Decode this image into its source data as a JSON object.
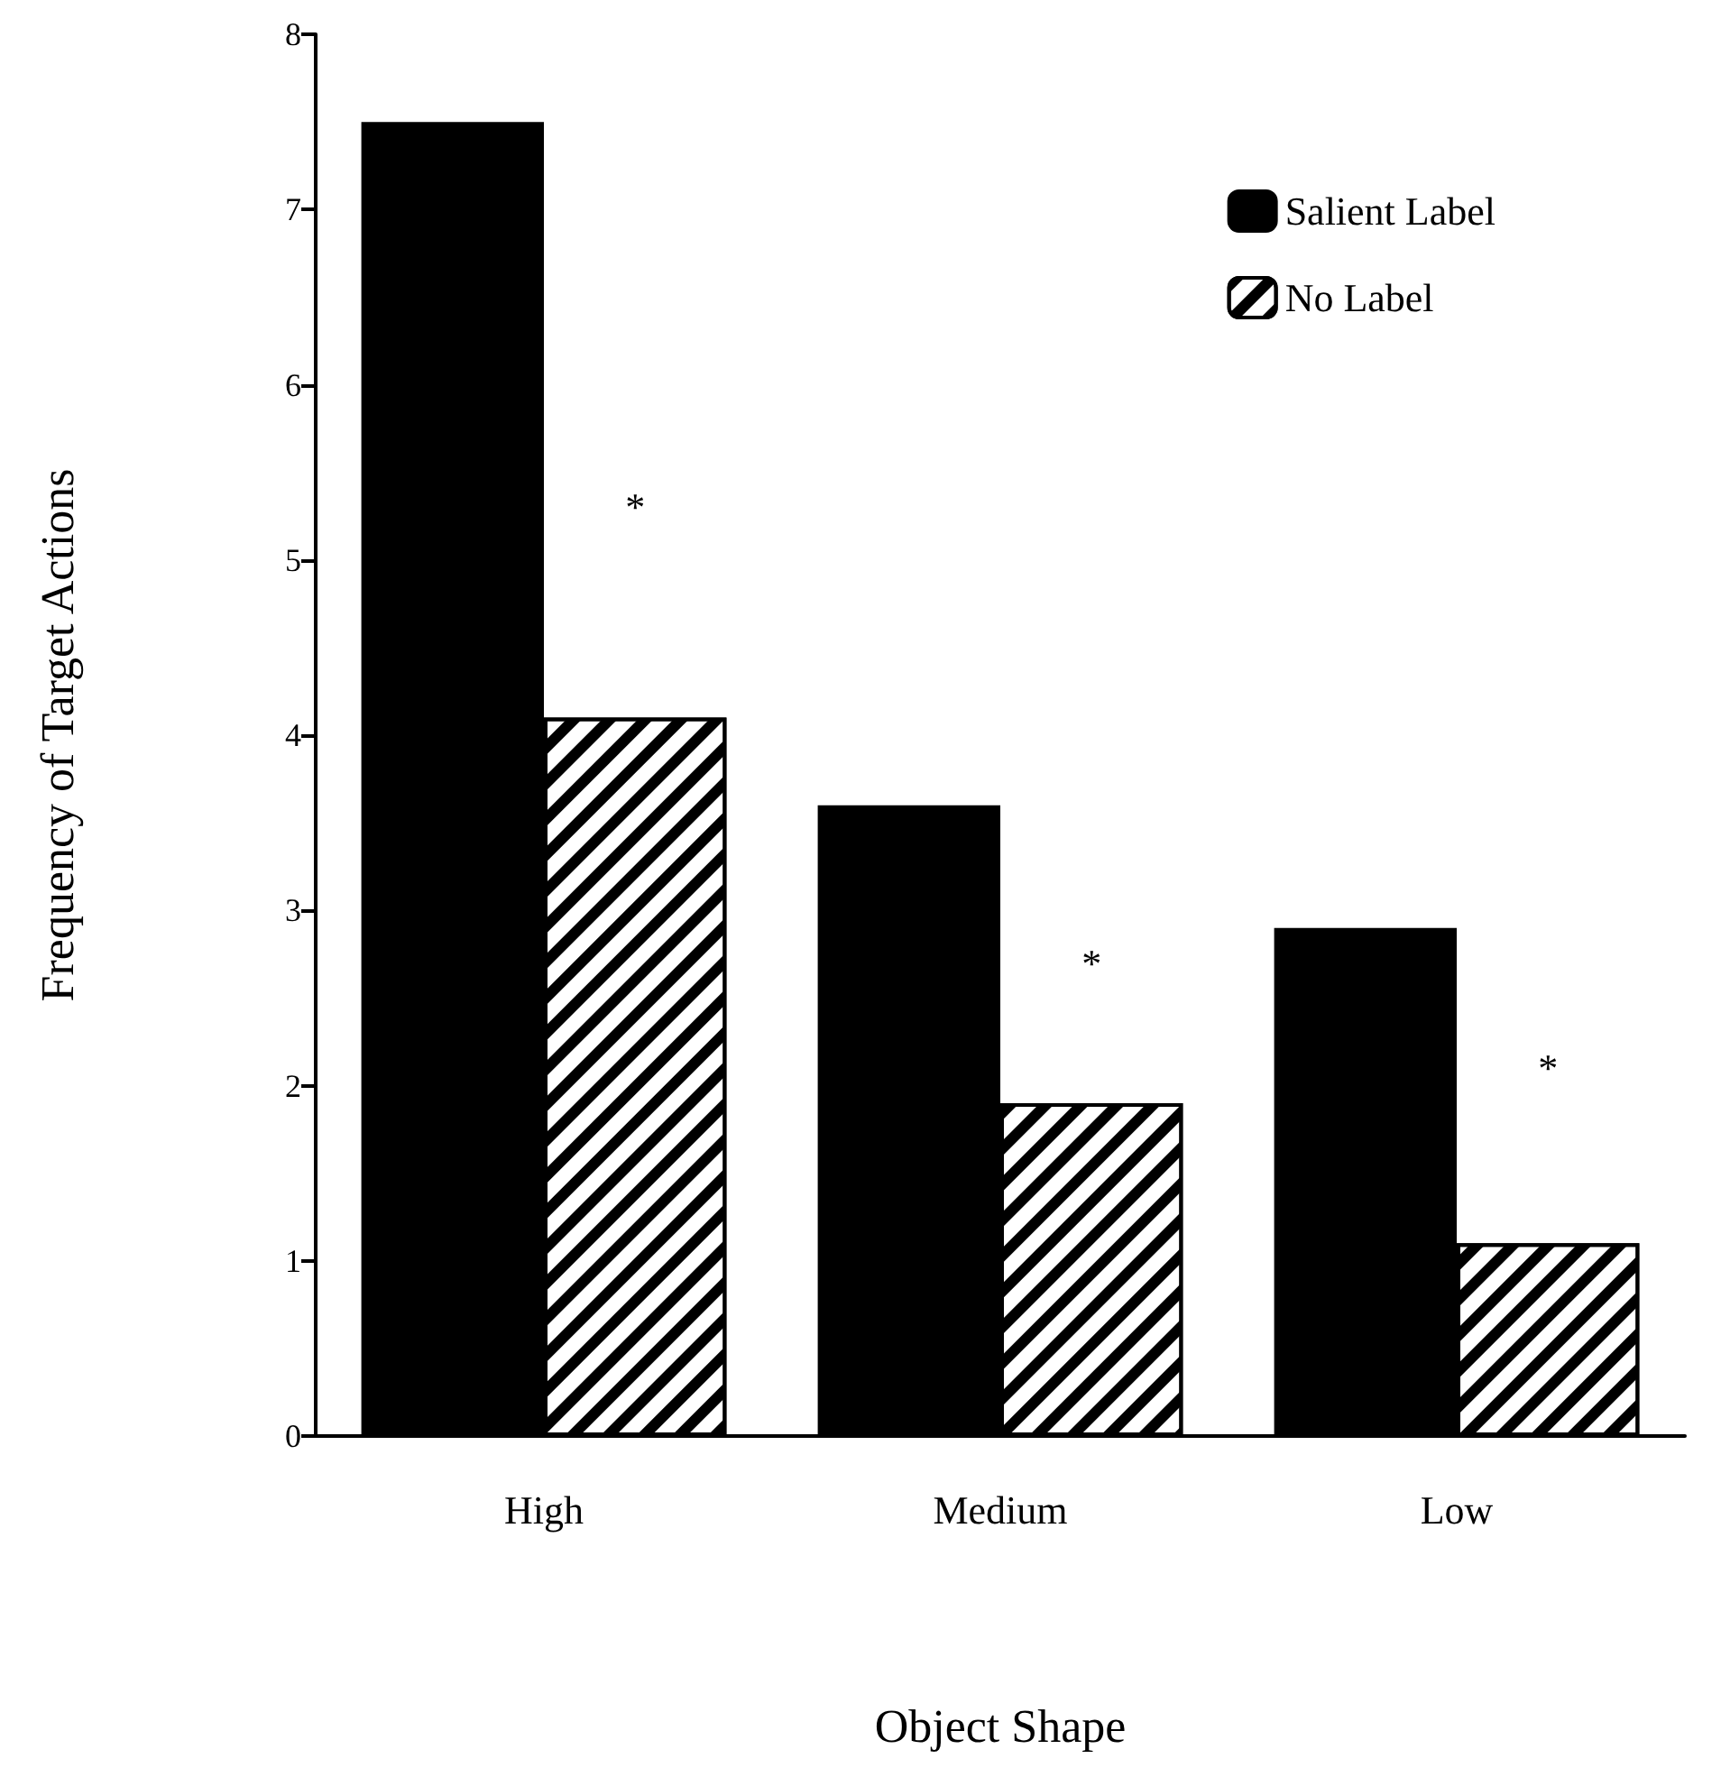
{
  "chart_data": {
    "type": "bar",
    "xlabel": "Object Shape",
    "ylabel": "Frequency of Target Actions",
    "categories": [
      "High",
      "Medium",
      "Low"
    ],
    "series": [
      {
        "name": "Salient Label",
        "color": "#000000",
        "values": [
          7.5,
          3.6,
          2.9
        ]
      },
      {
        "name": "No Label",
        "color": "#000000",
        "values": [
          4.1,
          1.9,
          1.1
        ]
      }
    ],
    "ylim": [
      0,
      8
    ],
    "yticks": [
      0,
      1,
      2,
      3,
      4,
      5,
      6,
      7,
      8
    ],
    "grid": false,
    "legend": "top right",
    "annotations": [
      {
        "text": "*",
        "x": "High",
        "y": 5.3
      },
      {
        "text": "*",
        "x": "Medium",
        "y": 2.7
      },
      {
        "text": "*",
        "x": "Low",
        "y": 2.1
      }
    ]
  }
}
